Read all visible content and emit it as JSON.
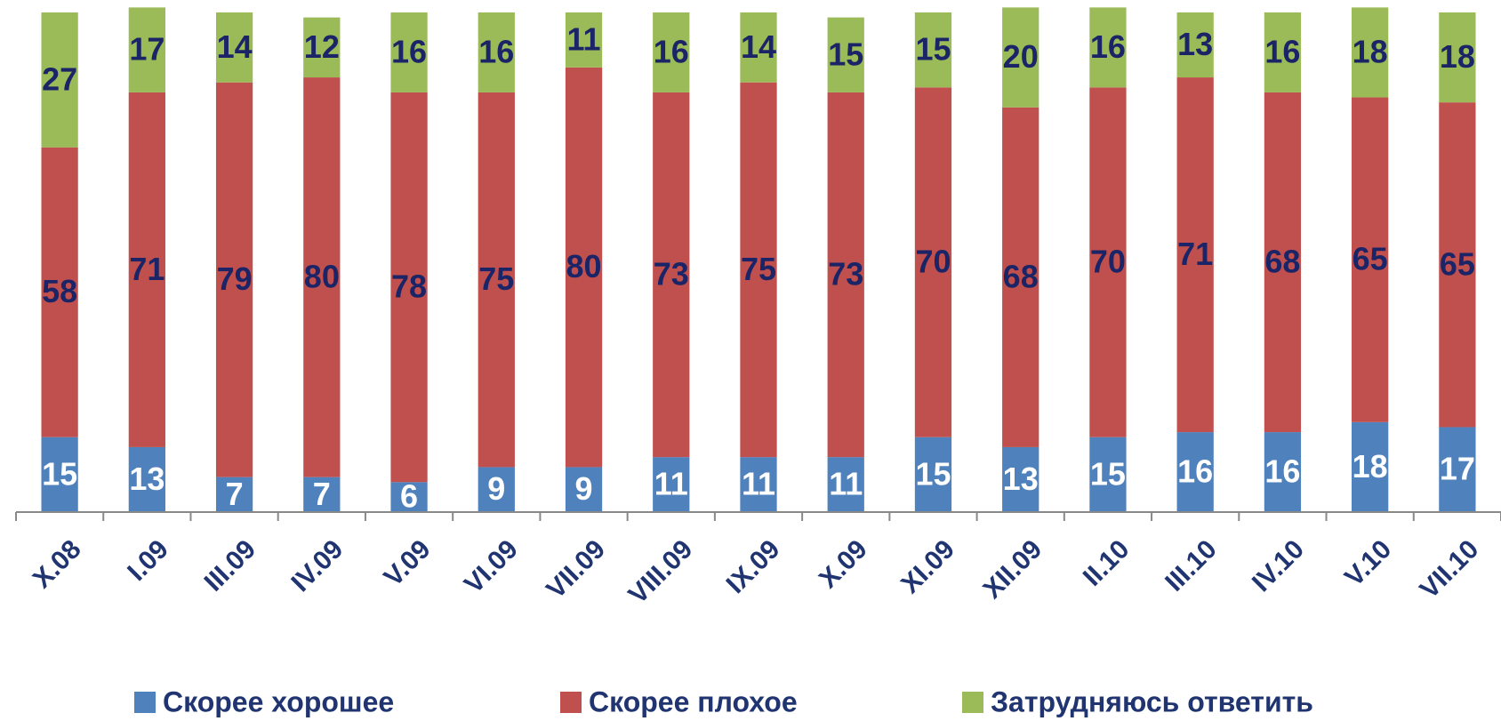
{
  "chart_data": {
    "type": "stacked_bar",
    "categories": [
      "X.08",
      "I.09",
      "III.09",
      "IV.09",
      "V.09",
      "VI.09",
      "VII.09",
      "VIII.09",
      "IX.09",
      "X.09",
      "XI.09",
      "XII.09",
      "II.10",
      "III.10",
      "IV.10",
      "V.10",
      "VII.10"
    ],
    "series": [
      {
        "name": "Скорее хорошее",
        "color": "#4f81bd",
        "values": [
          15,
          13,
          7,
          7,
          6,
          9,
          9,
          11,
          11,
          11,
          15,
          13,
          15,
          16,
          16,
          18,
          17
        ]
      },
      {
        "name": "Скорее плохое",
        "color": "#c0504d",
        "values": [
          58,
          71,
          79,
          80,
          78,
          75,
          80,
          73,
          75,
          73,
          70,
          68,
          70,
          71,
          68,
          65,
          65
        ]
      },
      {
        "name": "Затрудняюсь ответить",
        "color": "#9bbb59",
        "values": [
          27,
          17,
          14,
          12,
          16,
          16,
          11,
          16,
          14,
          15,
          15,
          20,
          16,
          13,
          16,
          18,
          18
        ]
      }
    ],
    "ylim": [
      0,
      100
    ],
    "legend": "bottom"
  }
}
